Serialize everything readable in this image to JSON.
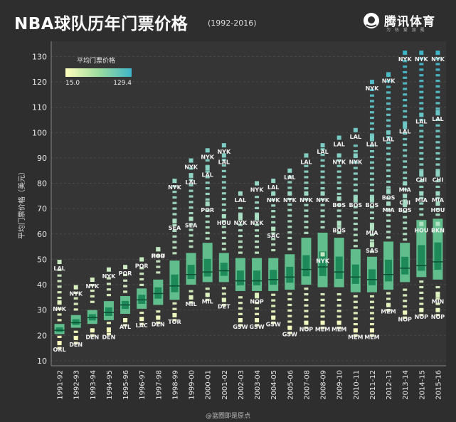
{
  "header": {
    "title": "NBA球队历年门票价格",
    "subtitle": "(1992-2016)"
  },
  "brand": {
    "name": "腾讯体育",
    "slogan": "为 热 爱 加 冕"
  },
  "footer": "@篮圈即是原点",
  "chart_data": {
    "type": "box",
    "title": "NBA球队历年门票价格",
    "ylabel": "平均门票价格（美元）",
    "ylim": [
      8,
      136
    ],
    "yticks": [
      10,
      20,
      30,
      40,
      50,
      60,
      70,
      80,
      90,
      100,
      110,
      120,
      130
    ],
    "grid": true,
    "legend": {
      "title": "平均门票价格",
      "min_label": "15.0",
      "max_label": "129.4",
      "color_low": "#ffffbe",
      "color_high": "#3fb5c8",
      "placement": "top-left"
    },
    "colors": {
      "box_outer": "#66cc96",
      "box_inner": "#1e8a5a",
      "median": "#0a4f34",
      "dot_low": "#f5f4bc",
      "dot_high": "#4cb8c8"
    },
    "categories": [
      "1991-92",
      "1992-93",
      "1993-94",
      "1994-95",
      "1995-96",
      "1996-97",
      "1997-98",
      "1998-99",
      "1999-00",
      "2000-01",
      "2001-02",
      "2002-03",
      "2003-04",
      "2004-05",
      "2005-06",
      "2007-08",
      "2008-09",
      "2009-10",
      "2010-11",
      "2011-12",
      "2012-13",
      "2013-14",
      "2014-15",
      "2015-16"
    ],
    "boxes": [
      {
        "q1": 20.5,
        "med": 22,
        "q3": 24.5,
        "min": 15,
        "max": 47.5
      },
      {
        "q1": 23,
        "med": 25,
        "q3": 28,
        "min": 17,
        "max": 37
      },
      {
        "q1": 24.5,
        "med": 27,
        "q3": 30,
        "min": 20,
        "max": 40.5
      },
      {
        "q1": 26,
        "med": 29,
        "q3": 33.5,
        "min": 20.5,
        "max": 44.5
      },
      {
        "q1": 28.5,
        "med": 32,
        "q3": 35.5,
        "min": 24,
        "max": 45
      },
      {
        "q1": 30.5,
        "med": 34,
        "q3": 38.5,
        "min": 24.5,
        "max": 48.5
      },
      {
        "q1": 32,
        "med": 36.5,
        "q3": 42,
        "min": 25,
        "max": 52
      },
      {
        "q1": 34,
        "med": 39.5,
        "q3": 49.5,
        "min": 26,
        "max": 79.5
      },
      {
        "q1": 40,
        "med": 44,
        "q3": 52.5,
        "min": 33,
        "max": 87
      },
      {
        "q1": 41,
        "med": 45,
        "q3": 56.5,
        "min": 34,
        "max": 91
      },
      {
        "q1": 41,
        "med": 45.5,
        "q3": 52.5,
        "min": 32,
        "max": 90
      },
      {
        "q1": 37.5,
        "med": 41.5,
        "q3": 50.5,
        "min": 24,
        "max": 71
      },
      {
        "q1": 37.5,
        "med": 41.5,
        "q3": 50.5,
        "min": 24,
        "max": 75.5
      },
      {
        "q1": 37.5,
        "med": 42,
        "q3": 50.5,
        "min": 25,
        "max": 77
      },
      {
        "q1": 38,
        "med": 43,
        "q3": 52,
        "min": 21,
        "max": 83
      },
      {
        "q1": 40,
        "med": 46,
        "q3": 58.5,
        "min": 23,
        "max": 89
      },
      {
        "q1": 39,
        "med": 47,
        "q3": 60.5,
        "min": 23,
        "max": 93.5
      },
      {
        "q1": 39,
        "med": 45,
        "q3": 58.5,
        "min": 23,
        "max": 93
      },
      {
        "q1": 37,
        "med": 43,
        "q3": 54,
        "min": 20,
        "max": 95
      },
      {
        "q1": 37,
        "med": 42,
        "q3": 51,
        "min": 20,
        "max": 118
      },
      {
        "q1": 38,
        "med": 44,
        "q3": 57,
        "min": 30,
        "max": 123
      },
      {
        "q1": 41,
        "med": 46.5,
        "q3": 56.5,
        "min": 27,
        "max": 129.5
      },
      {
        "q1": 43,
        "med": 47.5,
        "q3": 65.5,
        "min": 28,
        "max": 129.5
      },
      {
        "q1": 42,
        "med": 49,
        "q3": 66,
        "min": 28,
        "max": 129.5
      }
    ],
    "team_labels": [
      {
        "i": 0,
        "text": "LAL",
        "y": 47
      },
      {
        "i": 0,
        "text": "NYK",
        "y": 31
      },
      {
        "i": 0,
        "text": "ORL",
        "y": 15
      },
      {
        "i": 1,
        "text": "NYK",
        "y": 37
      },
      {
        "i": 1,
        "text": "DEN",
        "y": 17
      },
      {
        "i": 2,
        "text": "NYK",
        "y": 40
      },
      {
        "i": 2,
        "text": "DEN",
        "y": 20
      },
      {
        "i": 3,
        "text": "NYK",
        "y": 44
      },
      {
        "i": 3,
        "text": "DEN",
        "y": 20
      },
      {
        "i": 4,
        "text": "POR",
        "y": 45
      },
      {
        "i": 4,
        "text": "ATL",
        "y": 24
      },
      {
        "i": 5,
        "text": "POR",
        "y": 48
      },
      {
        "i": 5,
        "text": "LAC",
        "y": 24.5
      },
      {
        "i": 6,
        "text": "POR",
        "y": 52
      },
      {
        "i": 6,
        "text": "HOU",
        "y": 52
      },
      {
        "i": 6,
        "text": "DEN",
        "y": 25
      },
      {
        "i": 7,
        "text": "NYK",
        "y": 79
      },
      {
        "i": 7,
        "text": "SEA",
        "y": 63
      },
      {
        "i": 7,
        "text": "TOR",
        "y": 26
      },
      {
        "i": 8,
        "text": "NYK",
        "y": 87
      },
      {
        "i": 8,
        "text": "LAL",
        "y": 81
      },
      {
        "i": 8,
        "text": "SEA",
        "y": 64
      },
      {
        "i": 8,
        "text": "MIL",
        "y": 33
      },
      {
        "i": 9,
        "text": "NYK",
        "y": 91
      },
      {
        "i": 9,
        "text": "LAL",
        "y": 84
      },
      {
        "i": 9,
        "text": "POR",
        "y": 70
      },
      {
        "i": 9,
        "text": "MIL",
        "y": 34
      },
      {
        "i": 10,
        "text": "NYK",
        "y": 93
      },
      {
        "i": 10,
        "text": "LAL",
        "y": 89
      },
      {
        "i": 10,
        "text": "HOU",
        "y": 65
      },
      {
        "i": 10,
        "text": "DET",
        "y": 32
      },
      {
        "i": 11,
        "text": "LAL",
        "y": 74
      },
      {
        "i": 11,
        "text": "NYK",
        "y": 65
      },
      {
        "i": 11,
        "text": "GSW",
        "y": 24
      },
      {
        "i": 12,
        "text": "NYK",
        "y": 78
      },
      {
        "i": 12,
        "text": "NYK",
        "y": 65
      },
      {
        "i": 12,
        "text": "NOP",
        "y": 34
      },
      {
        "i": 12,
        "text": "GSW",
        "y": 24
      },
      {
        "i": 13,
        "text": "LAL",
        "y": 79
      },
      {
        "i": 13,
        "text": "NYK",
        "y": 74
      },
      {
        "i": 13,
        "text": "SAC",
        "y": 60
      },
      {
        "i": 13,
        "text": "GSW",
        "y": 25
      },
      {
        "i": 14,
        "text": "LAL",
        "y": 83
      },
      {
        "i": 14,
        "text": "NYK",
        "y": 74
      },
      {
        "i": 14,
        "text": "GSW",
        "y": 21
      },
      {
        "i": 15,
        "text": "LAL",
        "y": 89
      },
      {
        "i": 15,
        "text": "NYK",
        "y": 74
      },
      {
        "i": 15,
        "text": "NOP",
        "y": 23
      },
      {
        "i": 16,
        "text": "LAL",
        "y": 93
      },
      {
        "i": 16,
        "text": "NYK",
        "y": 74
      },
      {
        "i": 16,
        "text": "NYK",
        "y": 50
      },
      {
        "i": 16,
        "text": "MEM",
        "y": 23
      },
      {
        "i": 17,
        "text": "LAL",
        "y": 96
      },
      {
        "i": 17,
        "text": "NYK",
        "y": 89
      },
      {
        "i": 17,
        "text": "BOS",
        "y": 72
      },
      {
        "i": 17,
        "text": "BOS",
        "y": 62
      },
      {
        "i": 17,
        "text": "MEM",
        "y": 23
      },
      {
        "i": 18,
        "text": "LAL",
        "y": 99
      },
      {
        "i": 18,
        "text": "NYK",
        "y": 89
      },
      {
        "i": 18,
        "text": "BOS",
        "y": 72
      },
      {
        "i": 18,
        "text": "MEM",
        "y": 20
      },
      {
        "i": 19,
        "text": "NYK",
        "y": 118
      },
      {
        "i": 19,
        "text": "LAL",
        "y": 96
      },
      {
        "i": 19,
        "text": "BOS",
        "y": 72
      },
      {
        "i": 19,
        "text": "MIA",
        "y": 61
      },
      {
        "i": 19,
        "text": "SAS",
        "y": 54
      },
      {
        "i": 19,
        "text": "MEM",
        "y": 20
      },
      {
        "i": 20,
        "text": "NYK",
        "y": 121
      },
      {
        "i": 20,
        "text": "LAL",
        "y": 98
      },
      {
        "i": 20,
        "text": "BOS",
        "y": 75
      },
      {
        "i": 20,
        "text": "MIA",
        "y": 70
      },
      {
        "i": 20,
        "text": "MEM",
        "y": 30
      },
      {
        "i": 21,
        "text": "NYK",
        "y": 129.5
      },
      {
        "i": 21,
        "text": "LAL",
        "y": 101
      },
      {
        "i": 21,
        "text": "MIA",
        "y": 78
      },
      {
        "i": 21,
        "text": "CHI",
        "y": 73
      },
      {
        "i": 21,
        "text": "BOS",
        "y": 70
      },
      {
        "i": 21,
        "text": "NOP",
        "y": 27
      },
      {
        "i": 22,
        "text": "NYK",
        "y": 129.5
      },
      {
        "i": 22,
        "text": "LAL",
        "y": 105
      },
      {
        "i": 22,
        "text": "CHI",
        "y": 82
      },
      {
        "i": 22,
        "text": "MIA",
        "y": 74
      },
      {
        "i": 22,
        "text": "HOU",
        "y": 62
      },
      {
        "i": 22,
        "text": "NOP",
        "y": 28
      },
      {
        "i": 23,
        "text": "NYK",
        "y": 129.5
      },
      {
        "i": 23,
        "text": "LAL",
        "y": 106
      },
      {
        "i": 23,
        "text": "CHI",
        "y": 82
      },
      {
        "i": 23,
        "text": "MIA",
        "y": 74
      },
      {
        "i": 23,
        "text": "HOU",
        "y": 70
      },
      {
        "i": 23,
        "text": "BKN",
        "y": 62
      },
      {
        "i": 23,
        "text": "MIN",
        "y": 34
      },
      {
        "i": 23,
        "text": "NOP",
        "y": 28
      }
    ]
  }
}
